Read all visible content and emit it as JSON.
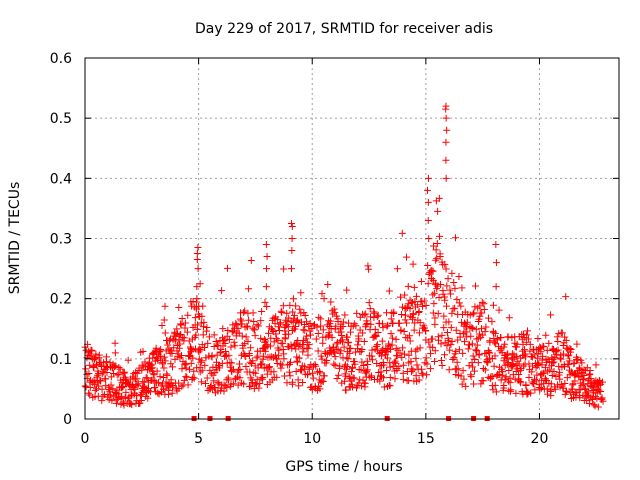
{
  "chart_data": {
    "type": "scatter",
    "title": "Day 229 of 2017, SRMTID for receiver adis",
    "xlabel": "GPS time / hours",
    "ylabel": "SRMTID / TECUs",
    "xlim": [
      0,
      23.5
    ],
    "ylim": [
      0,
      0.6
    ],
    "grid": true,
    "x_ticks": [
      0,
      5,
      10,
      15,
      20
    ],
    "x_tick_labels": [
      "0",
      "5",
      "10",
      "15",
      "20"
    ],
    "y_ticks": [
      0,
      0.1,
      0.2,
      0.3,
      0.4,
      0.5,
      0.6
    ],
    "y_tick_labels": [
      "0",
      "0.1",
      "0.2",
      "0.3",
      "0.4",
      "0.5",
      "0.6"
    ],
    "marker": "plus",
    "color": "#ff0000",
    "trend": {
      "x": [
        0,
        0.5,
        1,
        1.5,
        2,
        2.5,
        3,
        3.5,
        4,
        4.5,
        5,
        5.5,
        6,
        6.5,
        7,
        7.5,
        8,
        8.5,
        9,
        9.5,
        10,
        10.5,
        11,
        11.5,
        12,
        12.5,
        13,
        13.5,
        14,
        14.5,
        15,
        15.5,
        16,
        16.5,
        17,
        17.5,
        18,
        18.5,
        19,
        19.5,
        20,
        20.5,
        21,
        21.5,
        22,
        22.5,
        22.8
      ],
      "y": [
        0.085,
        0.07,
        0.065,
        0.055,
        0.045,
        0.06,
        0.075,
        0.085,
        0.095,
        0.12,
        0.14,
        0.09,
        0.1,
        0.11,
        0.12,
        0.105,
        0.11,
        0.115,
        0.13,
        0.12,
        0.1,
        0.11,
        0.12,
        0.1,
        0.115,
        0.12,
        0.11,
        0.12,
        0.14,
        0.13,
        0.16,
        0.2,
        0.17,
        0.13,
        0.11,
        0.13,
        0.1,
        0.09,
        0.095,
        0.09,
        0.08,
        0.085,
        0.095,
        0.07,
        0.06,
        0.045,
        0.04
      ]
    },
    "peaks": [
      {
        "x": 4.95,
        "values": [
          0.2,
          0.22,
          0.25,
          0.265,
          0.275,
          0.285
        ]
      },
      {
        "x": 8.0,
        "values": [
          0.22,
          0.25,
          0.27,
          0.29
        ]
      },
      {
        "x": 9.1,
        "values": [
          0.25,
          0.28,
          0.3,
          0.32,
          0.325
        ]
      },
      {
        "x": 15.1,
        "values": [
          0.3,
          0.33,
          0.36,
          0.38,
          0.4
        ]
      },
      {
        "x": 15.9,
        "values": [
          0.4,
          0.43,
          0.46,
          0.48,
          0.5,
          0.515,
          0.52
        ]
      },
      {
        "x": 18.1,
        "values": [
          0.22,
          0.26,
          0.29
        ]
      }
    ],
    "gap_markers_x": [
      4.8,
      5.5,
      6.3,
      13.3,
      16.0,
      17.1,
      17.7
    ]
  }
}
